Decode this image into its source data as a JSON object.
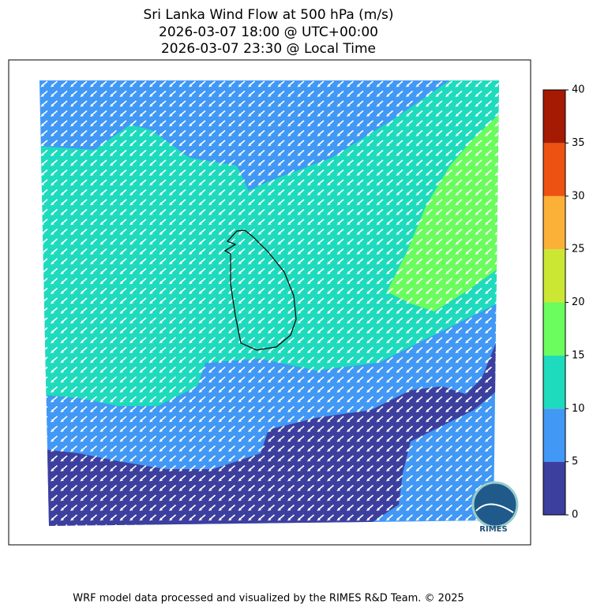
{
  "chart_data": {
    "type": "filled-map",
    "title": [
      "Sri Lanka Wind Flow at 500 hPa (m/s)",
      "2026-03-07 18:00 @ UTC+00:00",
      "2026-03-07 23:30 @ Local Time"
    ],
    "ylim": [
      0,
      40
    ],
    "yticks": [
      0,
      5,
      10,
      15,
      20,
      25,
      30,
      35,
      40
    ],
    "colors": [
      "#3d3f9e",
      "#4198f5",
      "#1edbbd",
      "#6bfc5d",
      "#cce733",
      "#fbb138",
      "#ee5212",
      "#a41a03"
    ],
    "logo": "RIMES",
    "footer": "WRF model data processed and visualized by the RIMES R&D Team. © 2025"
  }
}
